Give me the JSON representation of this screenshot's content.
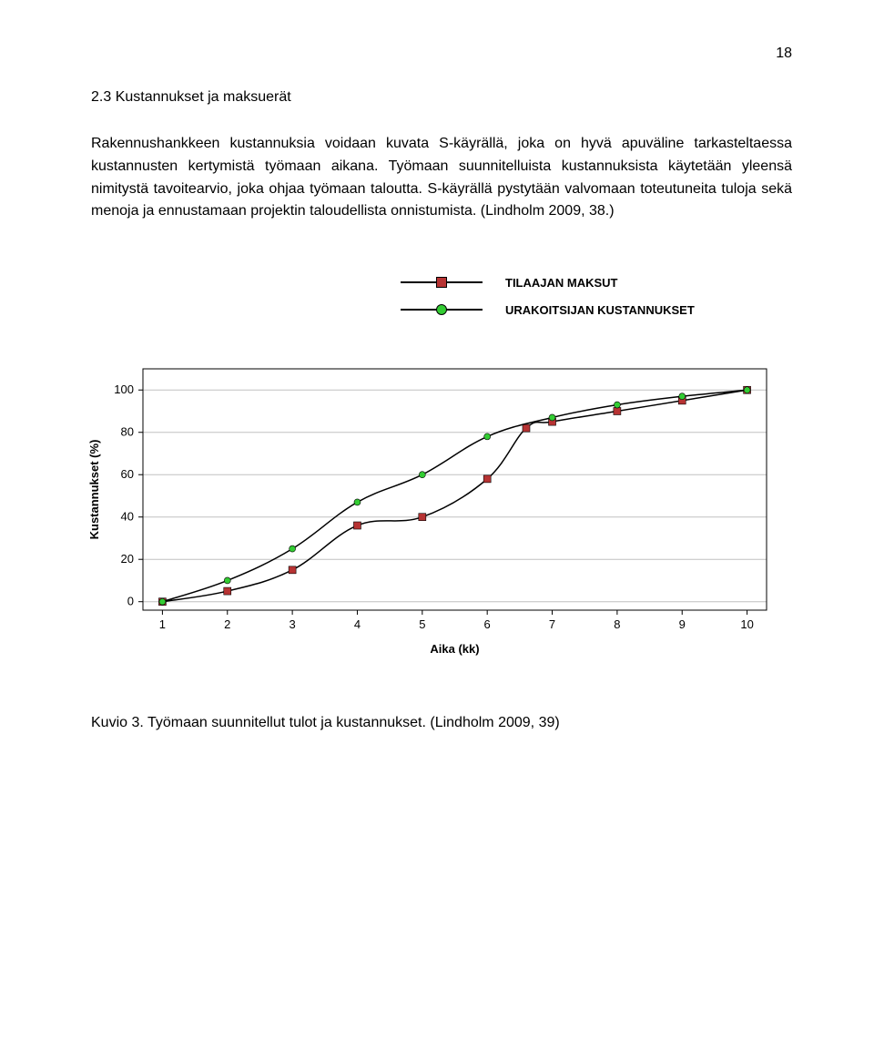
{
  "page_number": "18",
  "heading": "2.3 Kustannukset ja maksuerät",
  "paragraph": "Rakennushankkeen kustannuksia voidaan kuvata S-käyrällä, joka on hyvä apuväline tarkasteltaessa kustannusten kertymistä työmaan aikana. Työmaan suunnitelluista kustannuksista käytetään yleensä nimitystä tavoitearvio, joka ohjaa työmaan taloutta. S-käyrällä pystytään valvomaan toteutuneita tuloja sekä menoja ja ennustamaan projektin taloudellista onnistumista. (Lindholm 2009, 38.)",
  "legend": {
    "series1": {
      "label": "TILAAJAN MAKSUT",
      "color": "#b73333",
      "marker": "square",
      "line_color": "#000000"
    },
    "series2": {
      "label": "URAKOITSIJAN KUSTANNUKSET",
      "color": "#33cc33",
      "marker": "circle",
      "line_color": "#000000"
    }
  },
  "chart": {
    "type": "line",
    "background": "#ffffff",
    "grid_color": "#c0c0c0",
    "axis_color": "#000000",
    "xlabel": "Aika (kk)",
    "ylabel": "Kustannukset (%)",
    "label_fontsize": 13,
    "tick_fontsize": 13,
    "xticks": [
      1,
      2,
      3,
      4,
      5,
      6,
      7,
      8,
      9,
      10
    ],
    "yticks": [
      0,
      20,
      40,
      60,
      80,
      100
    ],
    "xlim": [
      0.7,
      10.3
    ],
    "ylim": [
      -4,
      110
    ],
    "series": [
      {
        "name": "tilaajan",
        "color": "#b73333",
        "marker": "square",
        "marker_size": 8,
        "line_color": "#000000",
        "line_width": 1.5,
        "points": [
          [
            1,
            0
          ],
          [
            2,
            5
          ],
          [
            3,
            15
          ],
          [
            4,
            36
          ],
          [
            5,
            40
          ],
          [
            6,
            58
          ],
          [
            6.6,
            82
          ],
          [
            7,
            85
          ],
          [
            8,
            90
          ],
          [
            9,
            95
          ],
          [
            10,
            100
          ]
        ]
      },
      {
        "name": "urakoitsijan",
        "color": "#33cc33",
        "marker": "circle",
        "marker_size": 7,
        "line_color": "#000000",
        "line_width": 1.5,
        "points": [
          [
            1,
            0
          ],
          [
            2,
            10
          ],
          [
            3,
            25
          ],
          [
            4,
            47
          ],
          [
            5,
            60
          ],
          [
            6,
            78
          ],
          [
            7,
            87
          ],
          [
            8,
            93
          ],
          [
            9,
            97
          ],
          [
            10,
            100
          ]
        ]
      }
    ]
  },
  "caption": "Kuvio 3. Työmaan suunnitellut tulot ja kustannukset. (Lindholm 2009, 39)"
}
